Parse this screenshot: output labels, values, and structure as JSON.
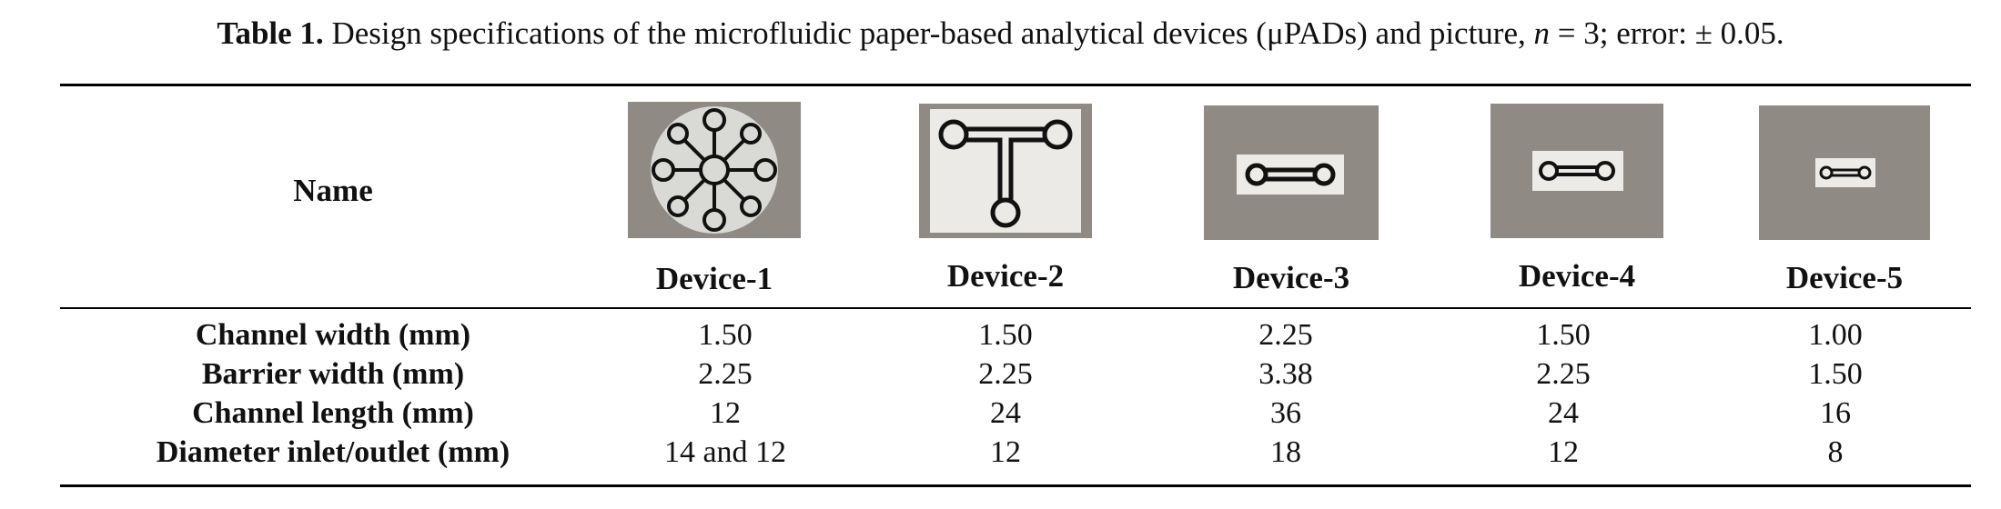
{
  "caption": {
    "label": "Table 1.",
    "text_before": " Design specifications of the microfluidic paper-based analytical devices (μPADs) and picture, ",
    "n_symbol": "n",
    "text_after": " = 3; error: ± 0.05."
  },
  "table": {
    "name_header": "Name",
    "devices": [
      {
        "label": "Device-1",
        "picture": "radial-star-device"
      },
      {
        "label": "Device-2",
        "picture": "t-shaped-device"
      },
      {
        "label": "Device-3",
        "picture": "dumbbell-device"
      },
      {
        "label": "Device-4",
        "picture": "dumbbell-device"
      },
      {
        "label": "Device-5",
        "picture": "small-dumbbell-device"
      }
    ],
    "rows": [
      {
        "label": "Channel width (mm)",
        "values": [
          "1.50",
          "1.50",
          "2.25",
          "1.50",
          "1.00"
        ]
      },
      {
        "label": "Barrier width (mm)",
        "values": [
          "2.25",
          "2.25",
          "3.38",
          "2.25",
          "1.50"
        ]
      },
      {
        "label": "Channel length (mm)",
        "values": [
          "12",
          "24",
          "36",
          "24",
          "16"
        ]
      },
      {
        "label": "Diameter inlet/outlet (mm)",
        "values": [
          "14 and 12",
          "12",
          "18",
          "12",
          "8"
        ]
      }
    ]
  }
}
